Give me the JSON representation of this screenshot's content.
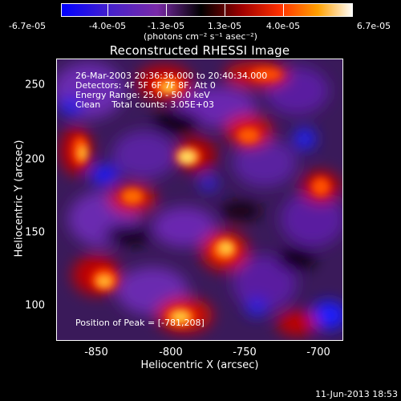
{
  "colorbar": {
    "tick_labels": [
      "-6.7e-05",
      "-4.0e-05",
      "-1.3e-05",
      "1.3e-05",
      "4.0e-05",
      "6.7e-05"
    ],
    "units_label": "(photons cm⁻² s⁻¹ asec⁻²)",
    "colors": [
      "#0000ff",
      "#5a1ab4",
      "#8020a0",
      "#000000",
      "#b00000",
      "#ff3000",
      "#ffa000",
      "#ffffff"
    ]
  },
  "title": "Reconstructed RHESSI Image",
  "info": {
    "time_range": "26-Mar-2003 20:36:36.000 to 20:40:34.000",
    "detectors": "Detectors: 4F 5F 6F 7F 8F, Att 0",
    "energy": "Energy Range: 25.0 - 50.0 keV",
    "clean": "Clean    Total counts: 3.05E+03",
    "peak": "Position of Peak = [-781,208]"
  },
  "axes": {
    "x_label": "Heliocentric X (arcsec)",
    "y_label": "Heliocentric Y (arcsec)",
    "x_ticks": [
      "-850",
      "-800",
      "-750",
      "-700"
    ],
    "y_ticks": [
      "250",
      "200",
      "150",
      "100"
    ]
  },
  "timestamp": "11-Jun-2013 18:53"
}
